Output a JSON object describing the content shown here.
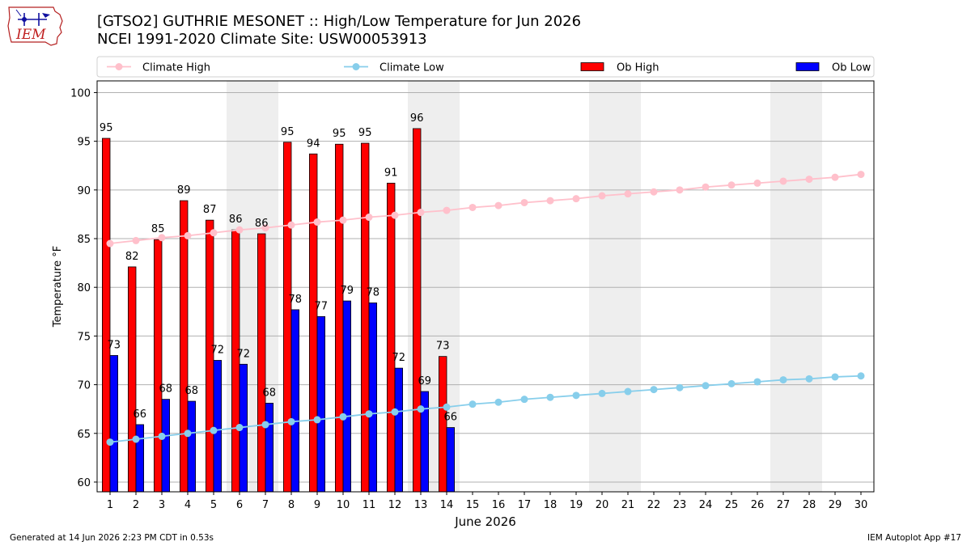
{
  "header": {
    "logo_text": "IEM",
    "title_line1": "[GTSO2] GUTHRIE MESONET :: High/Low Temperature for Jun 2026",
    "title_line2": "NCEI 1991-2020 Climate Site: USW00053913"
  },
  "footer": {
    "generated": "Generated at 14 Jun 2026 2:23 PM CDT in 0.53s",
    "app": "IEM Autoplot App #17"
  },
  "colors": {
    "ob_high": "#ff0000",
    "ob_low": "#0000ff",
    "climate_high": "#ffc0cb",
    "climate_low": "#87ceeb",
    "weekend_band": "#eeeeee",
    "grid": "#b0b0b0"
  },
  "chart_data": {
    "type": "bar",
    "title": "[GTSO2] GUTHRIE MESONET :: High/Low Temperature for Jun 2026",
    "subtitle": "NCEI 1991-2020 Climate Site: USW00053913",
    "xlabel": "June 2026",
    "ylabel": "Temperature °F",
    "ylim": [
      59,
      101.2
    ],
    "xlim": [
      0.5,
      30.5
    ],
    "yticks": [
      60,
      65,
      70,
      75,
      80,
      85,
      90,
      95,
      100
    ],
    "days": [
      1,
      2,
      3,
      4,
      5,
      6,
      7,
      8,
      9,
      10,
      11,
      12,
      13,
      14,
      15,
      16,
      17,
      18,
      19,
      20,
      21,
      22,
      23,
      24,
      25,
      26,
      27,
      28,
      29,
      30
    ],
    "grid": "horizontal",
    "legend_position": "top",
    "weekend_shading": [
      [
        6,
        7
      ],
      [
        13,
        14
      ],
      [
        20,
        21
      ],
      [
        27,
        28
      ]
    ],
    "legend": [
      {
        "key": "climate_high",
        "label": "Climate High",
        "style": "line"
      },
      {
        "key": "climate_low",
        "label": "Climate Low",
        "style": "line"
      },
      {
        "key": "ob_high",
        "label": "Ob High",
        "style": "bar"
      },
      {
        "key": "ob_low",
        "label": "Ob Low",
        "style": "bar"
      }
    ],
    "ob_high": {
      "name": "Ob High",
      "values": [
        95.3,
        82.1,
        84.9,
        88.9,
        86.9,
        85.9,
        85.5,
        94.9,
        93.7,
        94.7,
        94.8,
        90.7,
        96.3,
        72.9
      ],
      "labels": [
        "95",
        "82",
        "85",
        "89",
        "87",
        "86",
        "86",
        "95",
        "94",
        "95",
        "95",
        "91",
        "96",
        "73"
      ]
    },
    "ob_low": {
      "name": "Ob Low",
      "values": [
        73.0,
        65.9,
        68.5,
        68.3,
        72.5,
        72.1,
        68.1,
        77.7,
        77.0,
        78.6,
        78.4,
        71.7,
        69.3,
        65.6
      ],
      "labels": [
        "73",
        "66",
        "68",
        "68",
        "72",
        "72",
        "68",
        "78",
        "77",
        "79",
        "78",
        "72",
        "69",
        "66"
      ]
    },
    "climate_high": {
      "name": "Climate High",
      "values": [
        84.5,
        84.8,
        85.1,
        85.3,
        85.6,
        85.9,
        86.1,
        86.4,
        86.7,
        86.9,
        87.2,
        87.4,
        87.7,
        87.9,
        88.2,
        88.4,
        88.7,
        88.9,
        89.1,
        89.4,
        89.6,
        89.8,
        90.0,
        90.3,
        90.5,
        90.7,
        90.9,
        91.1,
        91.3,
        91.6
      ]
    },
    "climate_low": {
      "name": "Climate Low",
      "values": [
        64.1,
        64.4,
        64.7,
        65.0,
        65.3,
        65.6,
        65.9,
        66.2,
        66.4,
        66.7,
        67.0,
        67.2,
        67.5,
        67.7,
        68.0,
        68.2,
        68.5,
        68.7,
        68.9,
        69.1,
        69.3,
        69.5,
        69.7,
        69.9,
        70.1,
        70.3,
        70.5,
        70.6,
        70.8,
        70.9
      ]
    }
  }
}
